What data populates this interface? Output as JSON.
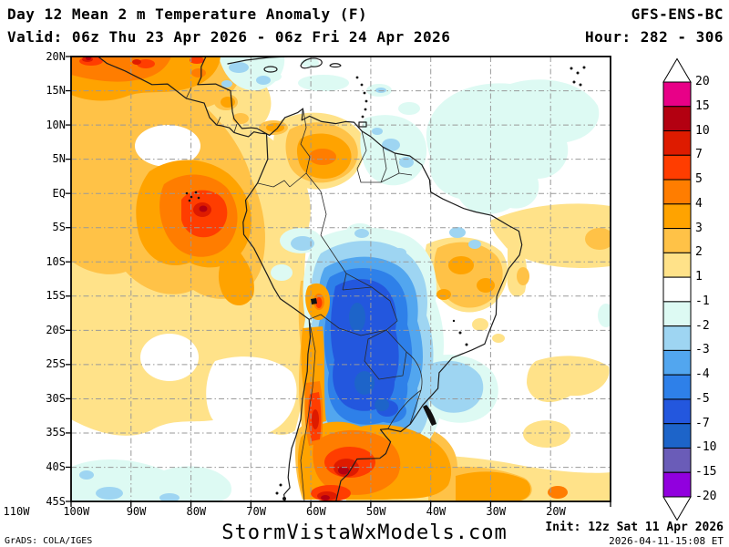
{
  "header": {
    "title": "Day 12 Mean 2 m Temperature Anomaly (F)",
    "model": "GFS-ENS-BC",
    "valid": "Valid: 06z Thu 23 Apr 2026 - 06z Fri 24 Apr 2026",
    "hour": "Hour: 282 - 306"
  },
  "footer": {
    "credit": "GrADS: COLA/IGES",
    "site": "StormVistaWxModels.com",
    "init": "Init: 12z Sat 11 Apr 2026",
    "timestamp": "2026-04-11-15:08 ET"
  },
  "map": {
    "lat_labels": [
      "20N",
      "15N",
      "10N",
      "5N",
      "EQ",
      "5S",
      "10S",
      "15S",
      "20S",
      "25S",
      "30S",
      "35S",
      "40S",
      "45S"
    ],
    "lon_labels": [
      "110W",
      "100W",
      "90W",
      "80W",
      "70W",
      "60W",
      "50W",
      "40W",
      "30W",
      "20W"
    ],
    "gridline_color": "#999999"
  },
  "colorbar": {
    "tick_labels": [
      "20",
      "15",
      "10",
      "7",
      "5",
      "4",
      "3",
      "2",
      "1",
      "-1",
      "-2",
      "-3",
      "-4",
      "-5",
      "-7",
      "-10",
      "-15",
      "-20"
    ],
    "cell_colors": [
      "#e80087",
      "#b30011",
      "#de1b00",
      "#ff3d00",
      "#ff7d00",
      "#ffa300",
      "#ffc247",
      "#ffe289",
      "#ffffff",
      "#ddfaf3",
      "#9ed5f2",
      "#52a6ef",
      "#2e80e9",
      "#2357de",
      "#1d64c9",
      "#6a5cb8",
      "#9100de"
    ],
    "triangle_color": "#ffffff"
  }
}
